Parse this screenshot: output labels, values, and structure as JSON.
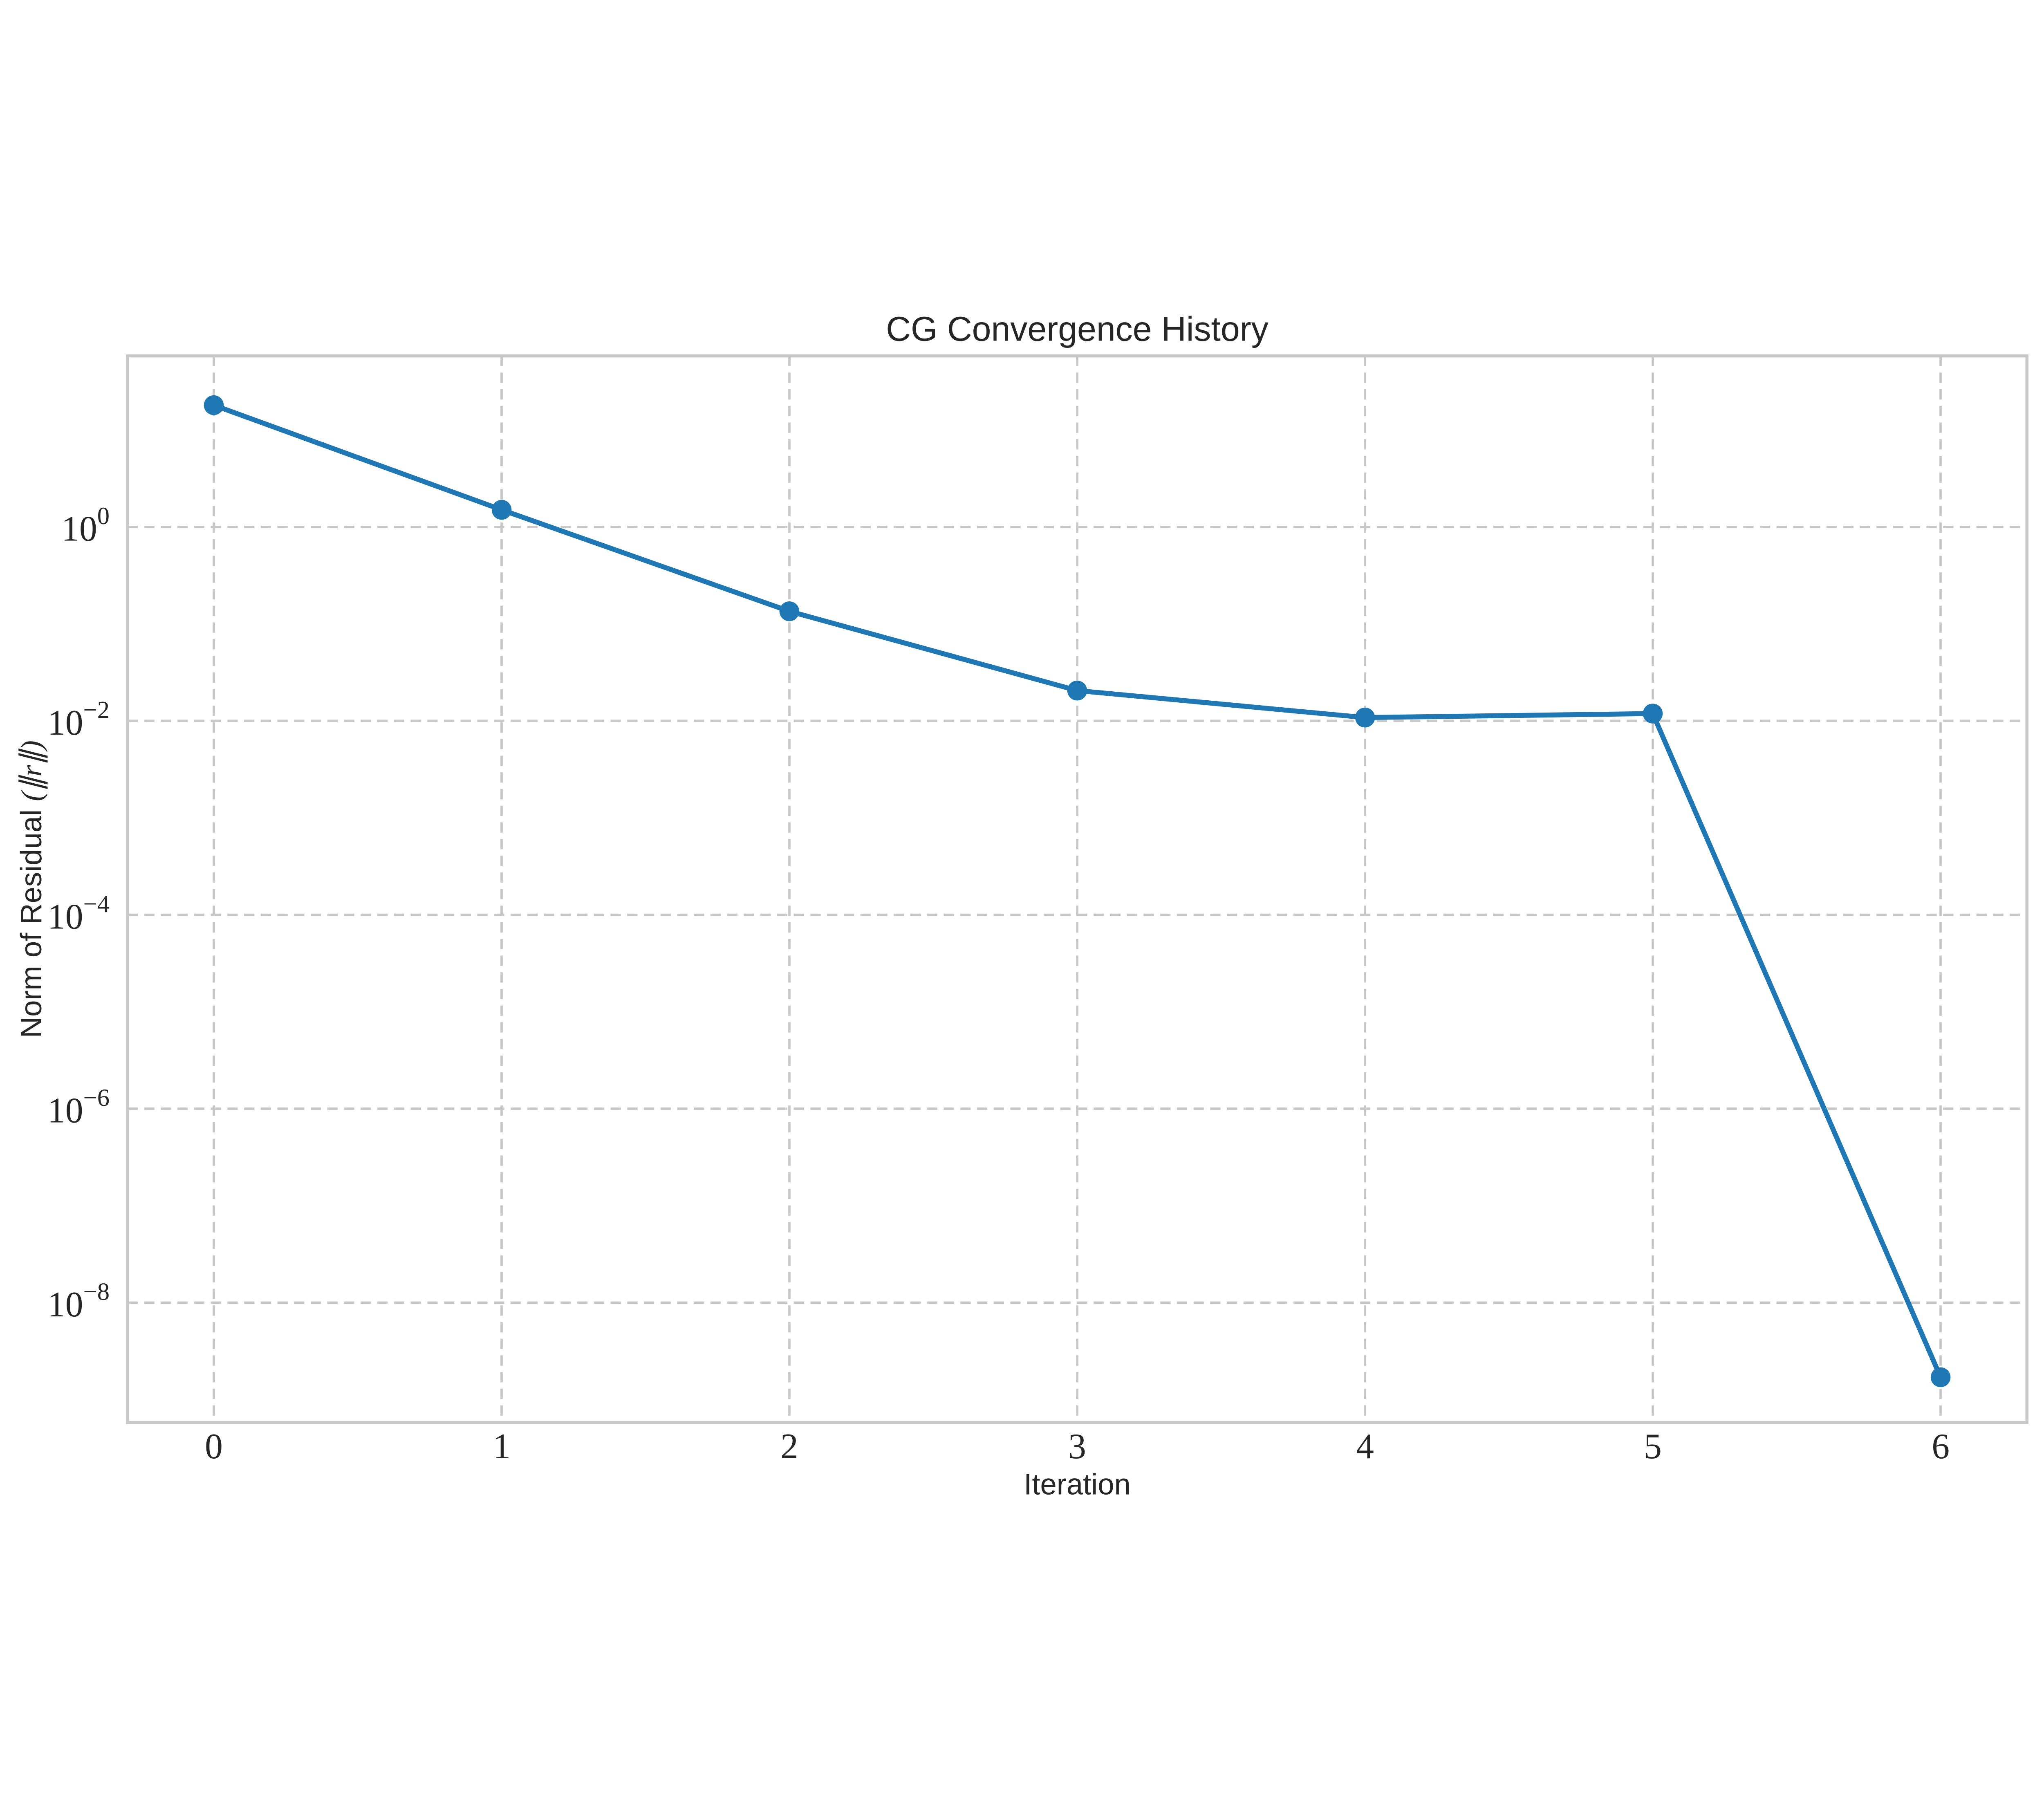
{
  "page": {
    "background": "#ffffff"
  },
  "chart_data": {
    "type": "line",
    "title": "CG Convergence History",
    "xlabel": "Iteration",
    "ylabel": "Norm of Residual (∥r∥)",
    "ylabel_text": "Norm of Residual ",
    "ylabel_math": "(∥r∥)",
    "x": [
      0,
      1,
      2,
      3,
      4,
      5,
      6
    ],
    "y": [
      18,
      1.5,
      0.135,
      0.0205,
      0.0108,
      0.0119,
      1.7e-09
    ],
    "yscale": "log",
    "xlim": [
      -0.3,
      6.3
    ],
    "ylim": [
      5.8e-10,
      58
    ],
    "x_ticks": [
      0,
      1,
      2,
      3,
      4,
      5,
      6
    ],
    "y_tick_exponents": [
      0,
      -2,
      -4,
      -6,
      -8
    ],
    "grid": true,
    "grid_linestyle": "dashed",
    "legend": "none",
    "marker": "circle",
    "colors": {
      "line": "#1f77b4",
      "marker": "#1f77b4",
      "grid": "#c8c8c8",
      "spine": "#c8c8c8",
      "text": "#262626"
    }
  }
}
